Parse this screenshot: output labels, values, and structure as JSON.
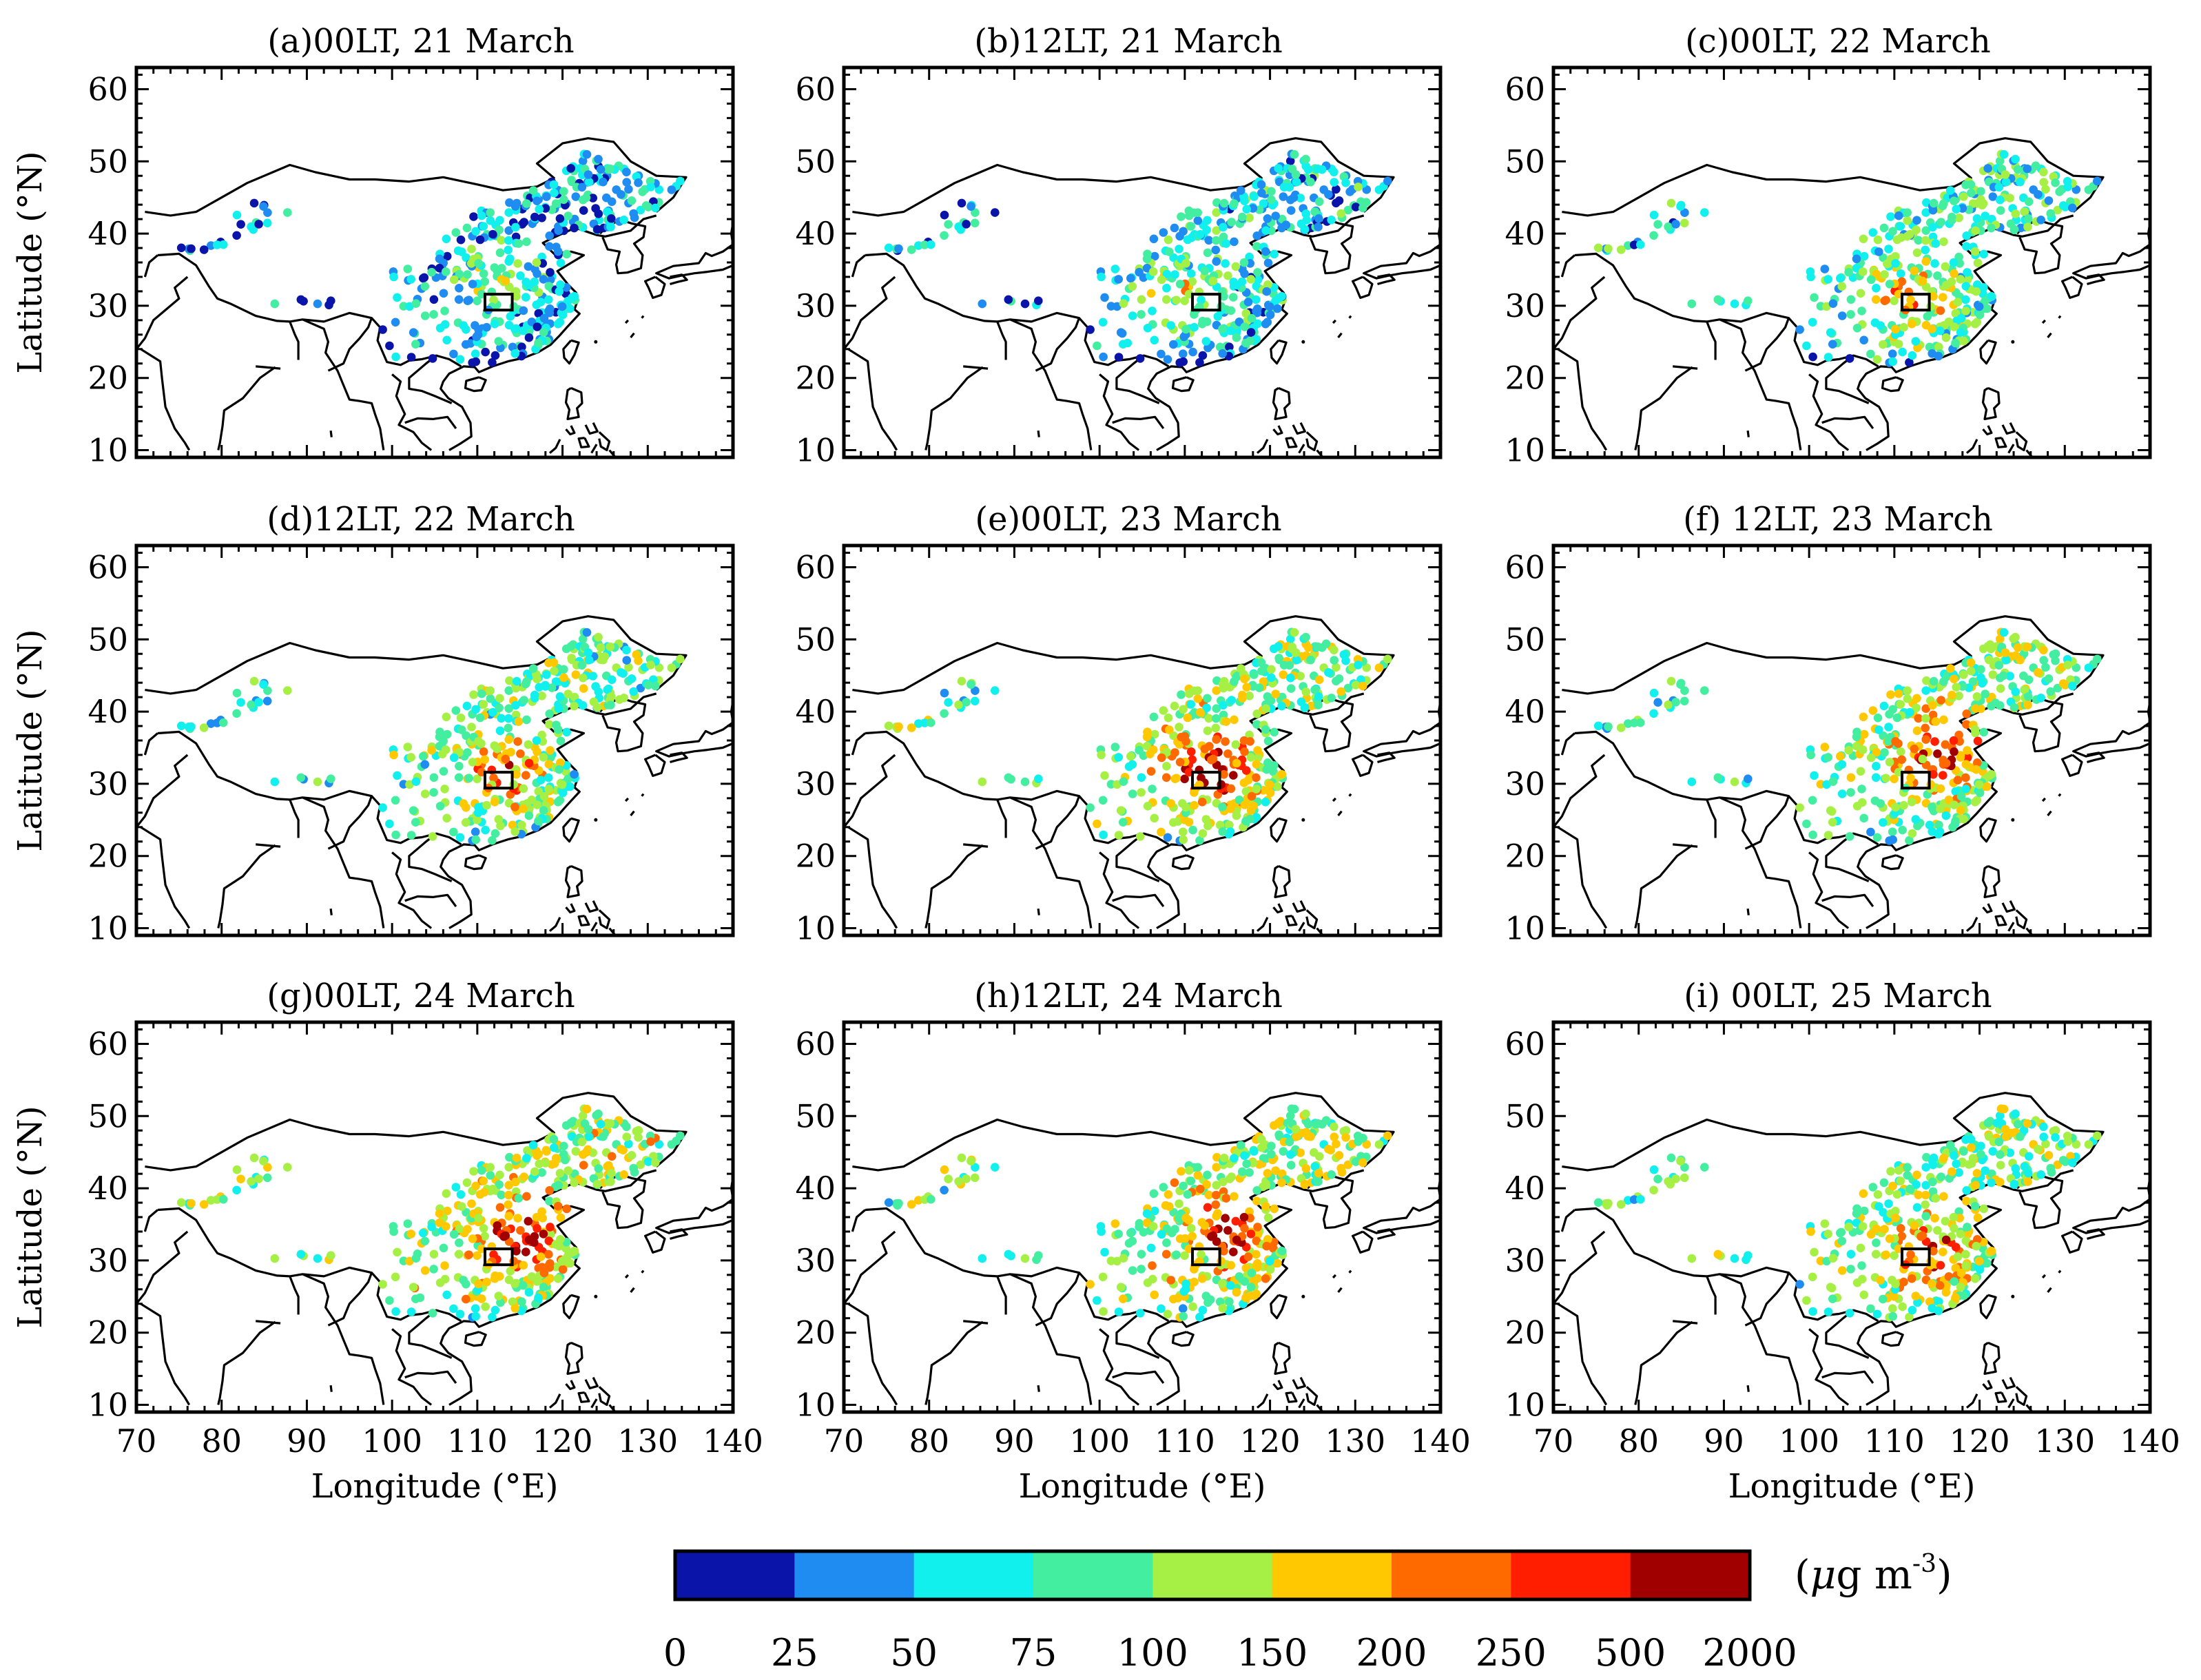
{
  "figure": {
    "panels": [
      {
        "label": "(a)00LT, 21 March",
        "scheme": 0
      },
      {
        "label": "(b)12LT, 21 March",
        "scheme": 1
      },
      {
        "label": "(c)00LT, 22 March",
        "scheme": 2
      },
      {
        "label": "(d)12LT, 22 March",
        "scheme": 3
      },
      {
        "label": "(e)00LT, 23 March",
        "scheme": 4
      },
      {
        "label": "(f) 12LT, 23 March",
        "scheme": 5
      },
      {
        "label": "(g)00LT, 24 March",
        "scheme": 6
      },
      {
        "label": "(h)12LT, 24 March",
        "scheme": 7
      },
      {
        "label": "(i) 00LT, 25 March",
        "scheme": 8
      }
    ],
    "y_axis_label": "Latitude (°N)",
    "x_axis_label": "Longitude (°E)",
    "lat_ticks": [
      "60",
      "50",
      "40",
      "30",
      "20",
      "10"
    ],
    "lon_ticks": [
      "70",
      "80",
      "90",
      "100",
      "110",
      "120",
      "130",
      "140"
    ],
    "colorbar": {
      "boundaries": [
        "0",
        "25",
        "50",
        "75",
        "100",
        "150",
        "200",
        "250",
        "500",
        "2000"
      ],
      "colors": [
        "#0a14a8",
        "#1e8cf0",
        "#12f0ee",
        "#44eea0",
        "#a6f046",
        "#ffc800",
        "#ff6a00",
        "#ff1e00",
        "#a00000"
      ],
      "unit_mu": "μ",
      "unit_g": "g  m",
      "unit_exp": "-3",
      "unit_open": "(",
      "unit_close": ")"
    },
    "study_box": {
      "lon": [
        110.9,
        114.1
      ],
      "lat": [
        29.4,
        31.6
      ]
    }
  }
}
